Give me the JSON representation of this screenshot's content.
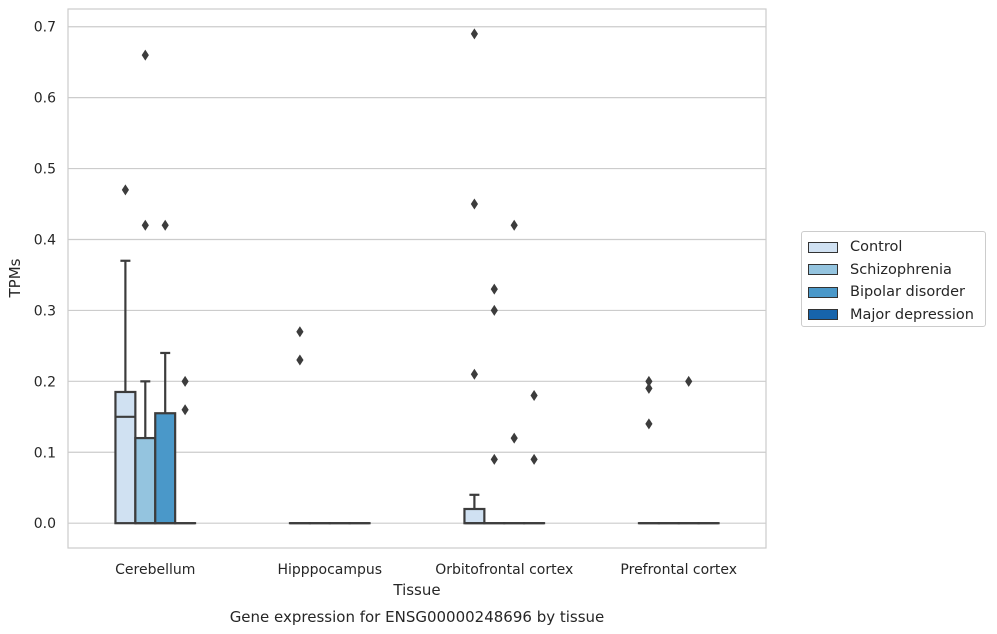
{
  "chart_data": {
    "type": "box",
    "caption": "Gene expression for ENSG00000248696 by tissue",
    "xlabel": "Tissue",
    "ylabel": "TPMs",
    "ylim": [
      -0.035,
      0.725
    ],
    "yticks": [
      "0.0",
      "0.1",
      "0.2",
      "0.3",
      "0.4",
      "0.5",
      "0.6",
      "0.7"
    ],
    "categories": [
      "Cerebellum",
      "Hipppocampus",
      "Orbitofrontal cortex",
      "Prefrontal cortex"
    ],
    "grid": true,
    "legend_position": "right",
    "series": [
      {
        "name": "Control",
        "color": "#d0e1f2",
        "boxes": [
          {
            "q1": 0.0,
            "median": 0.15,
            "q3": 0.185,
            "whisker_low": 0.0,
            "whisker_high": 0.37,
            "outliers": [
              0.47
            ]
          },
          {
            "q1": 0.0,
            "median": 0.0,
            "q3": 0.0,
            "whisker_low": 0.0,
            "whisker_high": 0.0,
            "outliers": [
              0.23,
              0.27
            ]
          },
          {
            "q1": 0.0,
            "median": 0.0,
            "q3": 0.02,
            "whisker_low": 0.0,
            "whisker_high": 0.04,
            "outliers": [
              0.21,
              0.45,
              0.69
            ]
          },
          {
            "q1": 0.0,
            "median": 0.0,
            "q3": 0.0,
            "whisker_low": 0.0,
            "whisker_high": 0.0,
            "outliers": [
              0.14,
              0.19,
              0.2
            ]
          }
        ]
      },
      {
        "name": "Schizophrenia",
        "color": "#94c4df",
        "boxes": [
          {
            "q1": 0.0,
            "median": 0.0,
            "q3": 0.12,
            "whisker_low": 0.0,
            "whisker_high": 0.2,
            "outliers": [
              0.42,
              0.66
            ]
          },
          {
            "q1": 0.0,
            "median": 0.0,
            "q3": 0.0,
            "whisker_low": 0.0,
            "whisker_high": 0.0,
            "outliers": []
          },
          {
            "q1": 0.0,
            "median": 0.0,
            "q3": 0.0,
            "whisker_low": 0.0,
            "whisker_high": 0.0,
            "outliers": [
              0.09,
              0.3,
              0.33
            ]
          },
          {
            "q1": 0.0,
            "median": 0.0,
            "q3": 0.0,
            "whisker_low": 0.0,
            "whisker_high": 0.0,
            "outliers": []
          }
        ]
      },
      {
        "name": "Bipolar disorder",
        "color": "#4a98c9",
        "boxes": [
          {
            "q1": 0.0,
            "median": 0.0,
            "q3": 0.155,
            "whisker_low": 0.0,
            "whisker_high": 0.24,
            "outliers": [
              0.42
            ]
          },
          {
            "q1": 0.0,
            "median": 0.0,
            "q3": 0.0,
            "whisker_low": 0.0,
            "whisker_high": 0.0,
            "outliers": []
          },
          {
            "q1": 0.0,
            "median": 0.0,
            "q3": 0.0,
            "whisker_low": 0.0,
            "whisker_high": 0.0,
            "outliers": [
              0.12,
              0.42
            ]
          },
          {
            "q1": 0.0,
            "median": 0.0,
            "q3": 0.0,
            "whisker_low": 0.0,
            "whisker_high": 0.0,
            "outliers": [
              0.2
            ]
          }
        ]
      },
      {
        "name": "Major depression",
        "color": "#1764ab",
        "boxes": [
          {
            "q1": 0.0,
            "median": 0.0,
            "q3": 0.0,
            "whisker_low": 0.0,
            "whisker_high": 0.0,
            "outliers": [
              0.16,
              0.2
            ]
          },
          {
            "q1": 0.0,
            "median": 0.0,
            "q3": 0.0,
            "whisker_low": 0.0,
            "whisker_high": 0.0,
            "outliers": []
          },
          {
            "q1": 0.0,
            "median": 0.0,
            "q3": 0.0,
            "whisker_low": 0.0,
            "whisker_high": 0.0,
            "outliers": [
              0.09,
              0.18
            ]
          },
          {
            "q1": 0.0,
            "median": 0.0,
            "q3": 0.0,
            "whisker_low": 0.0,
            "whisker_high": 0.0,
            "outliers": []
          }
        ]
      }
    ]
  }
}
